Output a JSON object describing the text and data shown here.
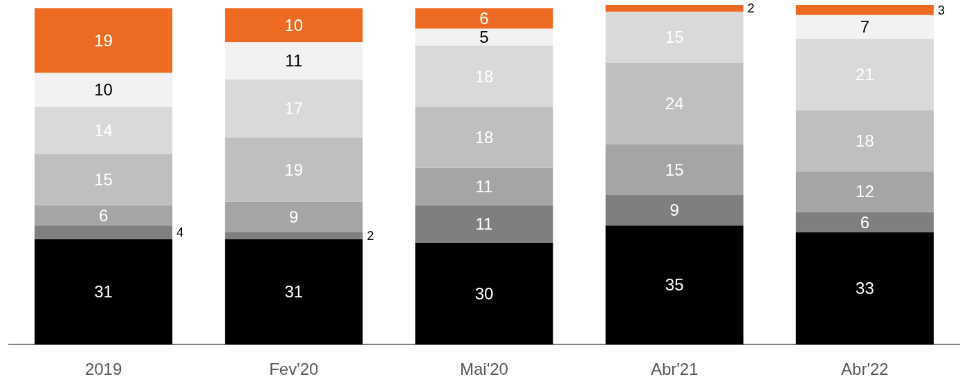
{
  "chart_data": {
    "type": "bar",
    "stacked": true,
    "data_labels": true,
    "ylim": [
      0,
      100
    ],
    "tick_labels": "x",
    "categories": [
      "2019",
      "Fev'20",
      "Mai'20",
      "Abr'21",
      "Abr'22"
    ],
    "series": [
      {
        "color": "#000000",
        "values": [
          31,
          31,
          30,
          35,
          33
        ]
      },
      {
        "color": "#7f7f7f",
        "values": [
          4,
          2,
          11,
          9,
          6
        ]
      },
      {
        "color": "#a5a5a5",
        "values": [
          6,
          9,
          11,
          15,
          12
        ]
      },
      {
        "color": "#bfbfbf",
        "values": [
          15,
          19,
          18,
          24,
          18
        ]
      },
      {
        "color": "#d9d9d9",
        "values": [
          14,
          17,
          18,
          15,
          21
        ]
      },
      {
        "color": "#f2f2f2",
        "values": [
          10,
          11,
          5,
          null,
          7
        ]
      },
      {
        "color": "#ec6a22",
        "values": [
          19,
          10,
          6,
          2,
          3
        ]
      }
    ]
  }
}
